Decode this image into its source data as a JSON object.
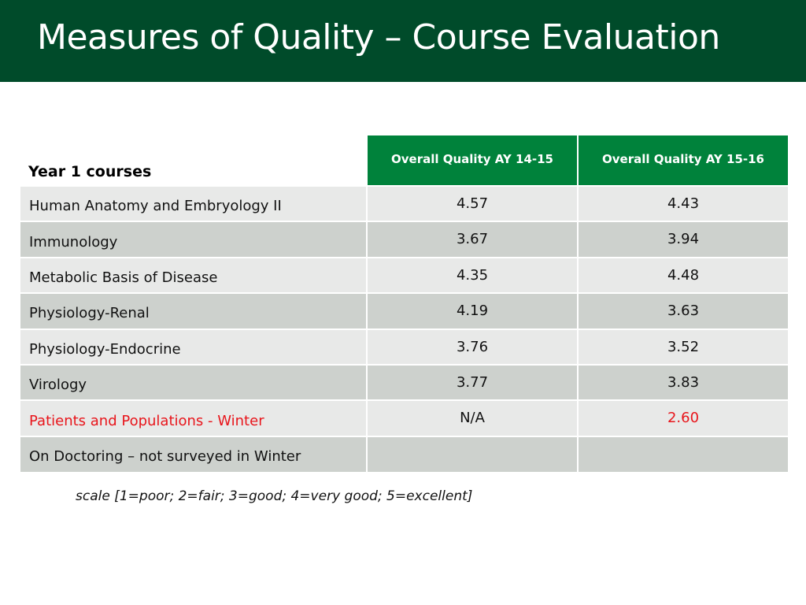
{
  "slide": {
    "title": "Measures of Quality – Course Evaluation",
    "colors": {
      "title_bar": "#004b2a",
      "header_green": "#00823b",
      "highlight_red": "#e8151b"
    }
  },
  "table": {
    "row_header_label": "Year 1 courses",
    "columns": [
      "Overall Quality AY 14-15",
      "Overall Quality AY 15-16"
    ],
    "rows": [
      {
        "course": "Human Anatomy and Embryology II",
        "ay1415": "4.57",
        "ay1516": "4.43"
      },
      {
        "course": "Immunology",
        "ay1415": "3.67",
        "ay1516": "3.94"
      },
      {
        "course": "Metabolic Basis of Disease",
        "ay1415": "4.35",
        "ay1516": "4.48"
      },
      {
        "course": "Physiology-Renal",
        "ay1415": "4.19",
        "ay1516": "3.63"
      },
      {
        "course": "Physiology-Endocrine",
        "ay1415": "3.76",
        "ay1516": "3.52"
      },
      {
        "course": "Virology",
        "ay1415": "3.77",
        "ay1516": "3.83"
      },
      {
        "course": "Patients and Populations - Winter",
        "ay1415": "N/A",
        "ay1516": "2.60"
      },
      {
        "course": "On Doctoring – not surveyed in Winter",
        "ay1415": "",
        "ay1516": ""
      }
    ]
  },
  "footnote": "scale [1=poor; 2=fair; 3=good; 4=very good; 5=excellent]"
}
